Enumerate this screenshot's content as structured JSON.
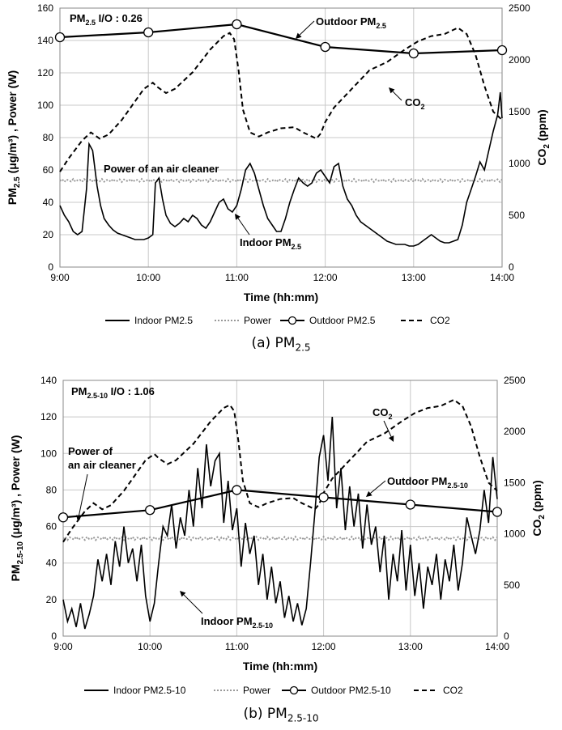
{
  "figure_a": {
    "caption_main": "(a) PM",
    "caption_sub": "2.5",
    "chart_data": {
      "type": "line",
      "title": "",
      "xlabel": "Time (hh:mm)",
      "ylabel_main": "PM",
      "ylabel_sub": "2.5",
      "ylabel_rest": " (μg/m³) , Power (W)",
      "y2label": "CO2 (ppm)",
      "xticks": [
        "9:00",
        "10:00",
        "11:00",
        "12:00",
        "13:00",
        "14:00"
      ],
      "xlim": [
        9,
        14
      ],
      "ylim": [
        0,
        160
      ],
      "yticks": [
        0,
        20,
        40,
        60,
        80,
        100,
        120,
        140,
        160
      ],
      "y2lim": [
        0,
        2500
      ],
      "y2ticks": [
        0,
        500,
        1000,
        1500,
        2000,
        2500
      ],
      "io_label": "PM2.5 I/O : 0.26",
      "annotations": {
        "outdoor": "Outdoor PM2.5",
        "co2": "CO2",
        "power": "Power of an air cleaner",
        "indoor": "Indoor PM2.5"
      },
      "legend": [
        "Indoor PM2.5",
        "Power",
        "Outdoor PM2.5",
        "CO2"
      ],
      "series": [
        {
          "name": "Outdoor PM2.5",
          "axis": "left",
          "x": [
            9,
            10,
            11,
            12,
            13,
            14
          ],
          "values": [
            142,
            145,
            150,
            136,
            132,
            134
          ]
        },
        {
          "name": "Power",
          "axis": "left",
          "x": [
            9,
            14
          ],
          "values": [
            53.5,
            53.5
          ]
        },
        {
          "name": "CO2",
          "axis": "right",
          "x": [
            9.0,
            9.1,
            9.25,
            9.35,
            9.45,
            9.55,
            9.7,
            9.85,
            9.95,
            10.05,
            10.1,
            10.2,
            10.3,
            10.5,
            10.7,
            10.85,
            10.92,
            10.97,
            11.02,
            11.07,
            11.15,
            11.25,
            11.35,
            11.5,
            11.65,
            11.75,
            11.85,
            11.9,
            11.95,
            12.0,
            12.1,
            12.3,
            12.5,
            12.7,
            12.9,
            13.05,
            13.2,
            13.35,
            13.5,
            13.6,
            13.7,
            13.8,
            13.9,
            14.0
          ],
          "values": [
            920,
            1050,
            1220,
            1300,
            1240,
            1280,
            1420,
            1600,
            1720,
            1780,
            1740,
            1680,
            1720,
            1880,
            2100,
            2230,
            2260,
            2200,
            1900,
            1520,
            1300,
            1260,
            1300,
            1340,
            1350,
            1300,
            1260,
            1240,
            1290,
            1400,
            1540,
            1720,
            1900,
            1980,
            2100,
            2180,
            2230,
            2250,
            2310,
            2250,
            2050,
            1750,
            1500,
            1420
          ]
        },
        {
          "name": "Indoor PM2.5",
          "axis": "left",
          "x": [
            9.0,
            9.05,
            9.1,
            9.15,
            9.2,
            9.25,
            9.3,
            9.33,
            9.37,
            9.42,
            9.46,
            9.5,
            9.55,
            9.6,
            9.65,
            9.7,
            9.75,
            9.8,
            9.85,
            9.9,
            9.95,
            10.0,
            10.05,
            10.08,
            10.12,
            10.16,
            10.2,
            10.25,
            10.3,
            10.35,
            10.4,
            10.45,
            10.5,
            10.55,
            10.6,
            10.65,
            10.7,
            10.75,
            10.8,
            10.85,
            10.9,
            10.95,
            11.0,
            11.05,
            11.1,
            11.15,
            11.2,
            11.25,
            11.3,
            11.35,
            11.4,
            11.45,
            11.5,
            11.55,
            11.6,
            11.65,
            11.7,
            11.75,
            11.8,
            11.85,
            11.9,
            11.95,
            12.0,
            12.05,
            12.1,
            12.15,
            12.2,
            12.25,
            12.3,
            12.35,
            12.4,
            12.45,
            12.5,
            12.55,
            12.6,
            12.65,
            12.7,
            12.75,
            12.8,
            12.85,
            12.9,
            12.95,
            13.0,
            13.05,
            13.1,
            13.15,
            13.2,
            13.25,
            13.3,
            13.35,
            13.4,
            13.45,
            13.5,
            13.55,
            13.6,
            13.65,
            13.7,
            13.75,
            13.8,
            13.85,
            13.9,
            13.95,
            13.98,
            14.0
          ],
          "values": [
            38,
            32,
            28,
            22,
            20,
            22,
            48,
            76,
            72,
            50,
            38,
            30,
            26,
            23,
            21,
            20,
            19,
            18,
            17,
            17,
            17,
            18,
            20,
            52,
            55,
            42,
            32,
            27,
            25,
            27,
            30,
            28,
            32,
            30,
            26,
            24,
            28,
            34,
            40,
            42,
            36,
            34,
            38,
            48,
            60,
            64,
            58,
            48,
            38,
            30,
            26,
            22,
            22,
            30,
            40,
            48,
            55,
            52,
            50,
            52,
            58,
            60,
            56,
            52,
            62,
            64,
            50,
            42,
            38,
            32,
            28,
            26,
            24,
            22,
            20,
            18,
            16,
            15,
            14,
            14,
            14,
            13,
            13,
            14,
            16,
            18,
            20,
            18,
            16,
            15,
            15,
            16,
            17,
            26,
            40,
            48,
            56,
            65,
            60,
            72,
            84,
            94,
            108,
            92
          ]
        }
      ]
    }
  },
  "figure_b": {
    "caption_main": "(b) PM",
    "caption_sub": "2.5-10",
    "chart_data": {
      "type": "line",
      "title": "",
      "xlabel": "Time (hh:mm)",
      "ylabel_main": "PM",
      "ylabel_sub": "2.5-10",
      "ylabel_rest": " (μg/m³) , Power (W)",
      "y2label": "CO2 (ppm)",
      "xticks": [
        "9:00",
        "10:00",
        "11:00",
        "12:00",
        "13:00",
        "14:00"
      ],
      "xlim": [
        9,
        14
      ],
      "ylim": [
        0,
        140
      ],
      "yticks": [
        0,
        20,
        40,
        60,
        80,
        100,
        120,
        140
      ],
      "y2lim": [
        0,
        2500
      ],
      "y2ticks": [
        0,
        500,
        1000,
        1500,
        2000,
        2500
      ],
      "io_label": "PM2.5-10 I/O : 1.06",
      "annotations": {
        "outdoor": "Outdoor PM2.5-10",
        "co2": "CO2",
        "power_line1": "Power of",
        "power_line2": "an air cleaner",
        "indoor": "Indoor PM2.5-10"
      },
      "legend": [
        "Indoor PM2.5-10",
        "Power",
        "Outdoor PM2.5-10",
        "CO2"
      ],
      "series": [
        {
          "name": "Outdoor PM2.5-10",
          "axis": "left",
          "x": [
            9,
            10,
            11,
            12,
            13,
            14
          ],
          "values": [
            65,
            69,
            80,
            76,
            72,
            68
          ]
        },
        {
          "name": "Power",
          "axis": "left",
          "x": [
            9,
            14
          ],
          "values": [
            53.5,
            53.5
          ]
        },
        {
          "name": "CO2",
          "axis": "right",
          "x": [
            9.0,
            9.1,
            9.25,
            9.35,
            9.45,
            9.55,
            9.7,
            9.85,
            9.95,
            10.05,
            10.1,
            10.2,
            10.3,
            10.5,
            10.7,
            10.85,
            10.92,
            10.97,
            11.02,
            11.07,
            11.15,
            11.25,
            11.35,
            11.5,
            11.65,
            11.75,
            11.85,
            11.9,
            11.95,
            12.0,
            12.1,
            12.3,
            12.5,
            12.7,
            12.9,
            13.05,
            13.2,
            13.35,
            13.5,
            13.6,
            13.7,
            13.8,
            13.9,
            14.0
          ],
          "values": [
            920,
            1050,
            1220,
            1300,
            1240,
            1280,
            1420,
            1600,
            1720,
            1780,
            1740,
            1680,
            1720,
            1880,
            2100,
            2230,
            2260,
            2200,
            1900,
            1520,
            1300,
            1260,
            1300,
            1340,
            1350,
            1300,
            1260,
            1240,
            1290,
            1400,
            1540,
            1720,
            1900,
            1980,
            2100,
            2180,
            2230,
            2250,
            2310,
            2250,
            2050,
            1750,
            1500,
            1420
          ]
        },
        {
          "name": "Indoor PM2.5-10",
          "axis": "left",
          "x": [
            9.0,
            9.05,
            9.1,
            9.15,
            9.2,
            9.25,
            9.3,
            9.35,
            9.4,
            9.45,
            9.5,
            9.55,
            9.6,
            9.65,
            9.7,
            9.75,
            9.8,
            9.85,
            9.9,
            9.95,
            10.0,
            10.05,
            10.1,
            10.15,
            10.2,
            10.25,
            10.3,
            10.35,
            10.4,
            10.45,
            10.5,
            10.55,
            10.6,
            10.65,
            10.7,
            10.75,
            10.8,
            10.85,
            10.9,
            10.95,
            11.0,
            11.05,
            11.1,
            11.15,
            11.2,
            11.25,
            11.3,
            11.35,
            11.4,
            11.45,
            11.5,
            11.55,
            11.6,
            11.65,
            11.7,
            11.75,
            11.8,
            11.85,
            11.9,
            11.95,
            12.0,
            12.05,
            12.1,
            12.15,
            12.2,
            12.25,
            12.3,
            12.35,
            12.4,
            12.45,
            12.5,
            12.55,
            12.6,
            12.65,
            12.7,
            12.75,
            12.8,
            12.85,
            12.9,
            12.95,
            13.0,
            13.05,
            13.1,
            13.15,
            13.2,
            13.25,
            13.3,
            13.35,
            13.4,
            13.45,
            13.5,
            13.55,
            13.6,
            13.65,
            13.7,
            13.75,
            13.8,
            13.85,
            13.9,
            13.95,
            14.0
          ],
          "values": [
            20,
            8,
            15,
            5,
            18,
            4,
            12,
            22,
            42,
            30,
            45,
            28,
            52,
            38,
            60,
            40,
            48,
            30,
            50,
            22,
            8,
            18,
            40,
            60,
            55,
            72,
            48,
            65,
            55,
            80,
            60,
            92,
            70,
            105,
            82,
            96,
            100,
            62,
            85,
            58,
            70,
            38,
            62,
            45,
            55,
            28,
            45,
            20,
            38,
            18,
            30,
            10,
            22,
            8,
            18,
            6,
            15,
            40,
            68,
            98,
            110,
            85,
            120,
            70,
            92,
            58,
            82,
            60,
            78,
            48,
            72,
            50,
            60,
            35,
            55,
            20,
            45,
            30,
            58,
            25,
            50,
            22,
            40,
            15,
            38,
            28,
            45,
            20,
            42,
            30,
            50,
            25,
            40,
            65,
            55,
            45,
            58,
            80,
            62,
            98,
            75
          ]
        }
      ]
    }
  }
}
